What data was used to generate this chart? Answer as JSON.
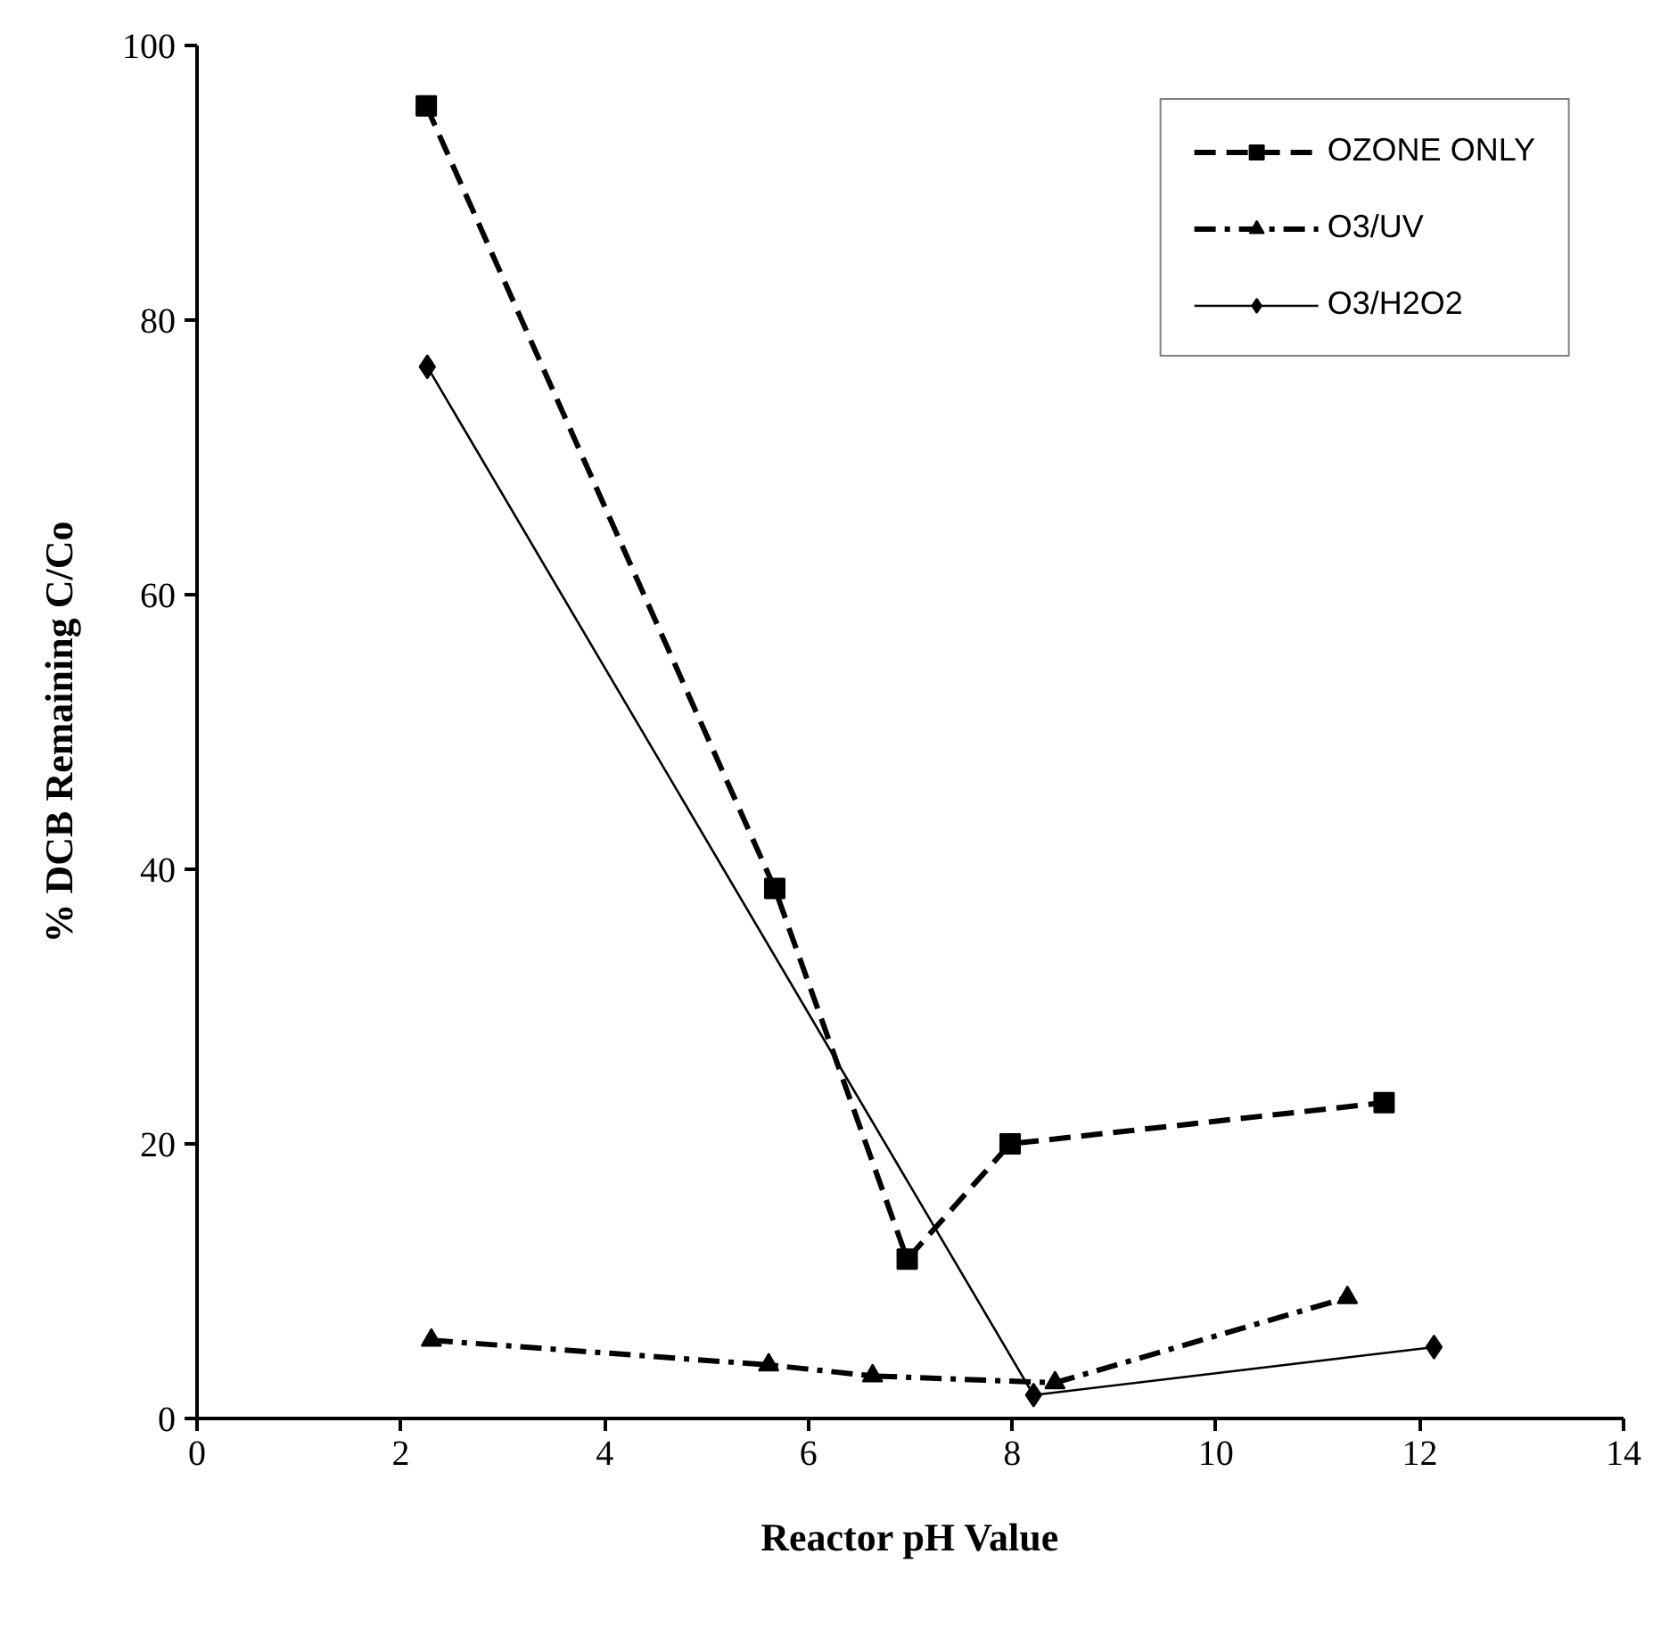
{
  "chart_data": {
    "type": "line",
    "xlabel": "Reactor pH Value",
    "ylabel": "% DCB Remaining C/Co",
    "xlim": [
      0,
      14
    ],
    "xticks": [
      0,
      2,
      4,
      6,
      8,
      10,
      12,
      14
    ],
    "ylim": [
      0,
      100
    ],
    "yticks": [
      0,
      20,
      40,
      60,
      80,
      100
    ],
    "grid": false,
    "legend": "top right",
    "series": [
      {
        "name": "OZONE ONLY",
        "color": "#000000",
        "marker": "square",
        "line_style": "dashed",
        "x": [
          2.25,
          5.67,
          6.97,
          7.98,
          11.65
        ],
        "values": [
          95.6,
          38.6,
          11.6,
          20.0,
          23.0
        ]
      },
      {
        "name": "O3/UV",
        "color": "#000000",
        "marker": "triangle",
        "line_style": "dashdot",
        "x": [
          2.3,
          5.61,
          6.63,
          8.42,
          11.29
        ],
        "values": [
          5.7,
          3.9,
          3.1,
          2.6,
          8.8
        ]
      },
      {
        "name": "O3/H2O2",
        "color": "#000000",
        "marker": "diamond",
        "line_style": "solid",
        "x": [
          2.26,
          8.21,
          12.14
        ],
        "values": [
          76.6,
          1.7,
          5.2
        ]
      }
    ]
  }
}
